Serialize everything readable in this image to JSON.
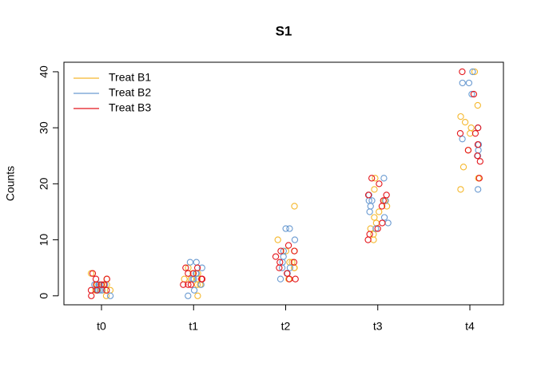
{
  "chart_data": {
    "type": "strip",
    "title": "S1",
    "y_label": "Counts",
    "categories": [
      "t0",
      "t1",
      "t2",
      "t3",
      "t4"
    ],
    "ylim": [
      -1.6,
      41.7
    ],
    "yticks": [
      0,
      10,
      20,
      30,
      40
    ],
    "legend": "top-left",
    "series": [
      {
        "name": "Treat B1",
        "color": "#f5b82e",
        "values": [
          [
            4,
            1,
            2,
            1,
            0,
            2,
            1,
            3,
            2,
            1
          ],
          [
            3,
            4,
            2,
            5,
            3,
            4,
            0,
            3,
            2,
            4
          ],
          [
            16,
            6,
            10,
            8,
            5,
            6,
            3,
            4,
            8,
            5
          ],
          [
            21,
            19,
            17,
            14,
            12,
            10,
            13,
            11,
            16,
            15
          ],
          [
            40,
            34,
            32,
            31,
            30,
            29,
            26,
            23,
            21,
            19
          ]
        ]
      },
      {
        "name": "Treat B2",
        "color": "#6b9bd1",
        "values": [
          [
            2,
            1,
            2,
            0,
            1,
            2,
            2,
            1,
            2,
            1
          ],
          [
            6,
            1,
            4,
            0,
            5,
            3,
            2,
            6,
            4,
            3
          ],
          [
            12,
            12,
            10,
            8,
            5,
            3,
            4,
            6,
            5,
            7
          ],
          [
            21,
            17,
            15,
            14,
            17,
            12,
            16,
            18,
            13,
            17
          ],
          [
            40,
            38,
            38,
            36,
            28,
            27,
            25,
            19,
            30,
            26
          ]
        ]
      },
      {
        "name": "Treat B3",
        "color": "#e4161c",
        "values": [
          [
            3,
            1,
            0,
            2,
            4,
            1,
            2,
            3,
            1,
            2
          ],
          [
            5,
            2,
            3,
            4,
            2,
            3,
            5,
            4,
            2,
            3
          ],
          [
            9,
            8,
            7,
            6,
            5,
            3,
            4,
            3,
            8,
            6
          ],
          [
            21,
            20,
            18,
            17,
            16,
            13,
            12,
            10,
            11,
            18
          ],
          [
            40,
            36,
            30,
            29,
            27,
            25,
            24,
            21,
            29,
            26
          ]
        ]
      }
    ]
  }
}
